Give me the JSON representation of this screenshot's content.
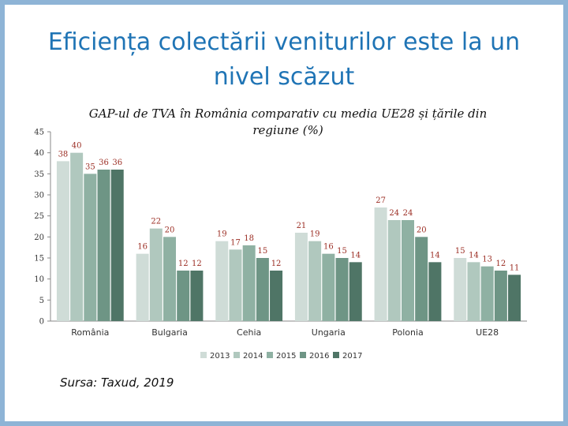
{
  "slide": {
    "title": "Eficiența colectării veniturilor este la un nivel scăzut",
    "source": "Sursa: Taxud, 2019"
  },
  "chart_data": {
    "type": "bar",
    "title": "GAP-ul de TVA în România comparativ cu media UE28 și țările din regiune (%)",
    "categories": [
      "România",
      "Bulgaria",
      "Cehia",
      "Ungaria",
      "Polonia",
      "UE28"
    ],
    "series": [
      {
        "name": "2013",
        "color": "#cfdcd7",
        "values": [
          38,
          16,
          19,
          21,
          27,
          15
        ]
      },
      {
        "name": "2014",
        "color": "#b0c8be",
        "values": [
          40,
          22,
          17,
          19,
          24,
          14
        ]
      },
      {
        "name": "2015",
        "color": "#8fb1a3",
        "values": [
          35,
          20,
          18,
          16,
          24,
          13
        ]
      },
      {
        "name": "2016",
        "color": "#6e9585",
        "values": [
          36,
          12,
          15,
          15,
          20,
          12
        ]
      },
      {
        "name": "2017",
        "color": "#4f7566",
        "values": [
          36,
          12,
          12,
          14,
          14,
          11
        ]
      }
    ],
    "yticks": [
      0,
      5,
      10,
      15,
      20,
      25,
      30,
      35,
      40,
      45
    ],
    "ylim": [
      0,
      45
    ],
    "grid": false,
    "legend": "bottom",
    "data_label_color": "#9b2d23"
  }
}
